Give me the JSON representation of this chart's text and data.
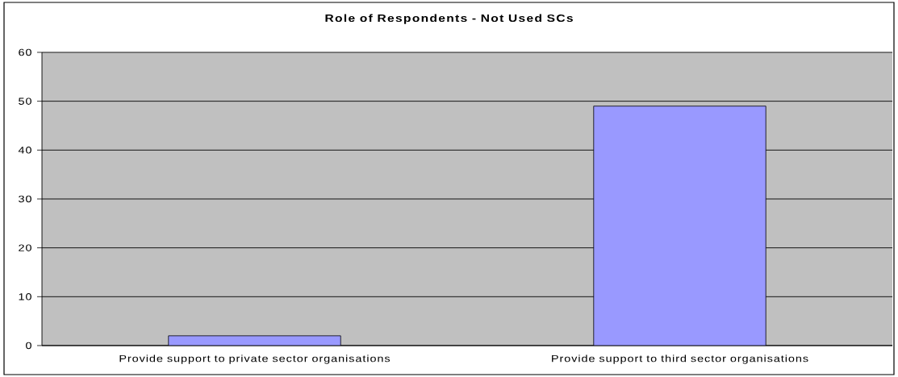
{
  "chart_data": {
    "type": "bar",
    "title": "Role of Respondents - Not Used SCs",
    "categories": [
      "Provide support to private sector organisations",
      "Provide support to third sector organisations"
    ],
    "values": [
      2,
      49
    ],
    "color": "#9999ff",
    "ylim": [
      0,
      60
    ],
    "yticks": [
      0,
      10,
      20,
      30,
      40,
      50,
      60
    ],
    "grid": "y"
  }
}
